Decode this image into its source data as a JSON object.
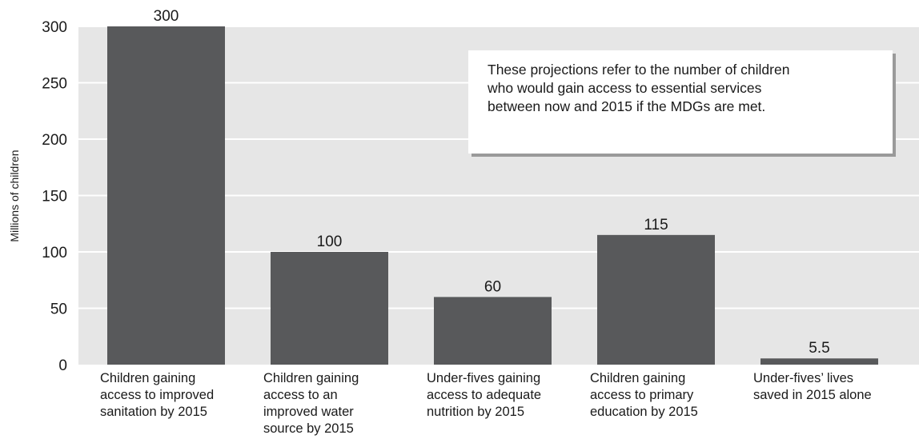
{
  "chart_data": {
    "type": "bar",
    "ylabel": "Millions of children",
    "ylim": [
      0,
      300
    ],
    "yticks": [
      "0",
      "50",
      "100",
      "150",
      "200",
      "250",
      "300"
    ],
    "grid": true,
    "colors": {
      "bar": "#58595b",
      "plot_bg": "#e6e6e6",
      "grid": "#ffffff"
    },
    "categories": [
      [
        "Children gaining",
        "access to improved",
        "sanitation by 2015"
      ],
      [
        "Children gaining",
        "access to an",
        "improved water",
        "source by 2015"
      ],
      [
        "Under-fives gaining",
        "access to adequate",
        "nutrition by 2015"
      ],
      [
        "Children gaining",
        "access to primary",
        "education by 2015"
      ],
      [
        "Under-fives’ lives",
        "saved in 2015 alone"
      ]
    ],
    "values": [
      300,
      100,
      60,
      115,
      5.5
    ],
    "value_labels": [
      "300",
      "100",
      "60",
      "115",
      "5.5"
    ],
    "annotation": [
      "These projections refer to the number of children",
      "who would gain access to essential services",
      "between now and 2015 if the MDGs are met."
    ]
  }
}
